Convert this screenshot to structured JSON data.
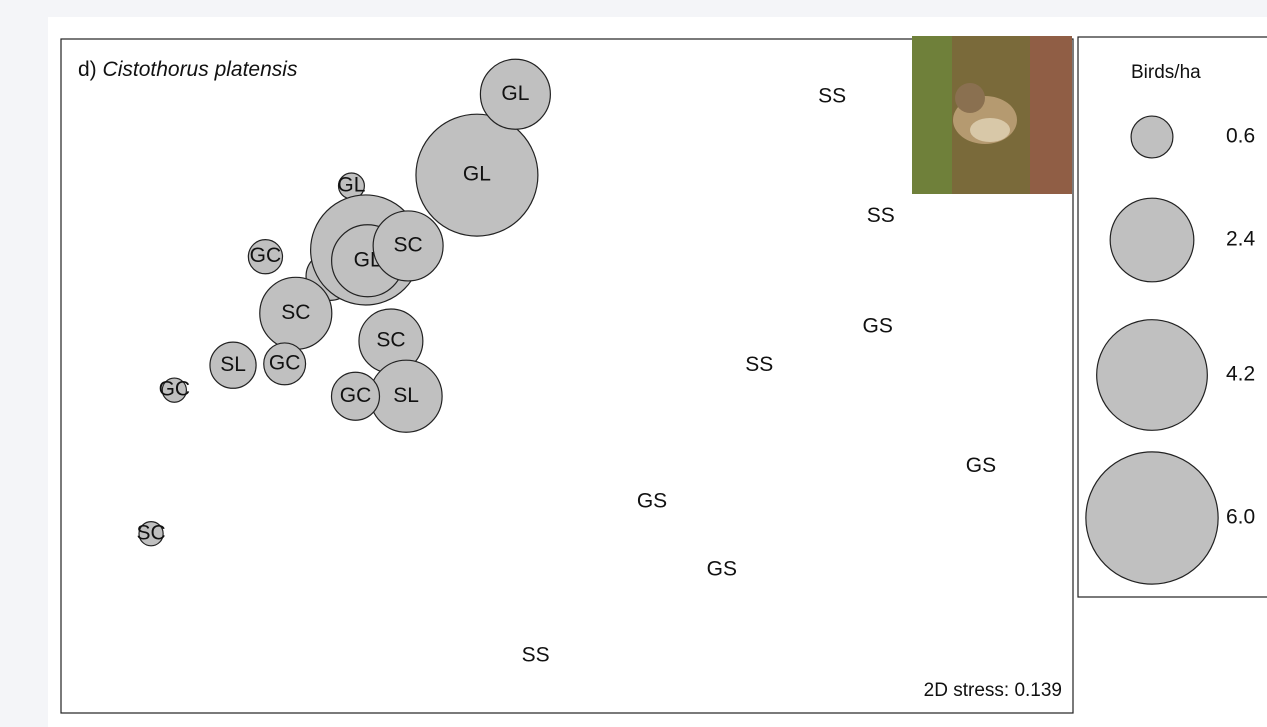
{
  "chart_data": {
    "type": "bubble",
    "panel": "d)",
    "title": "Cistothorus platensis",
    "annotation": "2D stress: 0.139",
    "xlim": [
      0,
      100
    ],
    "ylim": [
      0,
      100
    ],
    "color": "#c0c0c0",
    "points": [
      {
        "label": "GL",
        "x": 41.1,
        "y": 79.8,
        "size": 5.1
      },
      {
        "label": "GL",
        "x": 44.9,
        "y": 91.8,
        "size": 1.68
      },
      {
        "label": "GL",
        "x": 28.7,
        "y": 78.2,
        "size": 0.23
      },
      {
        "label": "GC",
        "x": 20.2,
        "y": 67.7,
        "size": 0.4
      },
      {
        "label": "SL",
        "x": 26.6,
        "y": 64.8,
        "size": 0.8
      },
      {
        "label": "SL",
        "x": 30.1,
        "y": 68.7,
        "size": 4.15
      },
      {
        "label": "GL",
        "x": 30.3,
        "y": 67.1,
        "size": 1.78
      },
      {
        "label": "SC",
        "x": 34.3,
        "y": 69.3,
        "size": 1.68
      },
      {
        "label": "SC",
        "x": 23.2,
        "y": 59.3,
        "size": 1.78
      },
      {
        "label": "SC",
        "x": 32.6,
        "y": 55.2,
        "size": 1.4
      },
      {
        "label": "SL",
        "x": 17.0,
        "y": 51.6,
        "size": 0.73
      },
      {
        "label": "GC",
        "x": 22.1,
        "y": 51.8,
        "size": 0.6
      },
      {
        "label": "GC",
        "x": 11.2,
        "y": 47.9,
        "size": 0.2
      },
      {
        "label": "SL",
        "x": 34.1,
        "y": 47.0,
        "size": 1.78
      },
      {
        "label": "GC",
        "x": 29.1,
        "y": 47.0,
        "size": 0.79
      },
      {
        "label": "SC",
        "x": 8.9,
        "y": 26.6,
        "size": 0.2
      },
      {
        "label": "SS",
        "x": 76.2,
        "y": 91.4,
        "size": 0
      },
      {
        "label": "SS",
        "x": 81.0,
        "y": 73.7,
        "size": 0
      },
      {
        "label": "GS",
        "x": 80.7,
        "y": 57.3,
        "size": 0
      },
      {
        "label": "SS",
        "x": 69.0,
        "y": 51.6,
        "size": 0
      },
      {
        "label": "GS",
        "x": 90.9,
        "y": 36.6,
        "size": 0
      },
      {
        "label": "GS",
        "x": 58.4,
        "y": 31.3,
        "size": 0
      },
      {
        "label": "GS",
        "x": 65.3,
        "y": 21.2,
        "size": 0
      },
      {
        "label": "SS",
        "x": 46.9,
        "y": 8.5,
        "size": 0
      }
    ],
    "legend": {
      "title": "Birds/ha",
      "sizes": [
        0.6,
        2.4,
        4.2,
        {
          "value": 6,
          "label": "6.0"
        }
      ]
    }
  }
}
